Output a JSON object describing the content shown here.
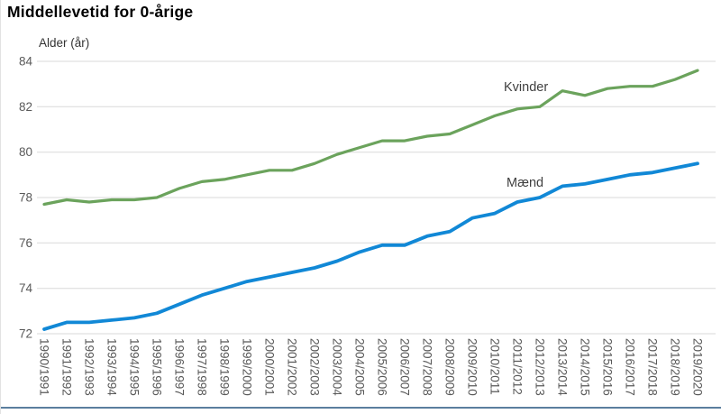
{
  "chart_data": {
    "type": "line",
    "title": "Middellevetid for 0-årige",
    "ylabel": "Alder (år)",
    "xlabel": "",
    "ylim": [
      72,
      84
    ],
    "y_ticks": [
      72,
      74,
      76,
      78,
      80,
      82,
      84
    ],
    "grid": "horizontal",
    "legend_position": "inline-labels",
    "categories": [
      "1990/1991",
      "1991/1992",
      "1992/1993",
      "1993/1994",
      "1994/1995",
      "1995/1996",
      "1996/1997",
      "1997/1998",
      "1998/1999",
      "1999/2000",
      "2000/2001",
      "2001/2002",
      "2002/2003",
      "2003/2004",
      "2004/2005",
      "2005/2006",
      "2006/2007",
      "2007/2008",
      "2008/2009",
      "2009/2010",
      "2010/2011",
      "2011/2012",
      "2012/2013",
      "2013/2014",
      "2014/2015",
      "2015/2016",
      "2016/2017",
      "2017/2018",
      "2018/2019",
      "2019/2020"
    ],
    "series": [
      {
        "name": "Kvinder",
        "color": "#6ba35c",
        "values": [
          77.7,
          77.9,
          77.8,
          77.9,
          77.9,
          78.0,
          78.4,
          78.7,
          78.8,
          79.0,
          79.2,
          79.2,
          79.5,
          79.9,
          80.2,
          80.5,
          80.5,
          80.7,
          80.8,
          81.2,
          81.6,
          81.9,
          82.0,
          82.7,
          82.5,
          82.8,
          82.9,
          82.9,
          83.2,
          83.6
        ]
      },
      {
        "name": "Mænd",
        "color": "#1188d6",
        "values": [
          72.2,
          72.5,
          72.5,
          72.6,
          72.7,
          72.9,
          73.3,
          73.7,
          74.0,
          74.3,
          74.5,
          74.7,
          74.9,
          75.2,
          75.6,
          75.9,
          75.9,
          76.3,
          76.5,
          77.1,
          77.3,
          77.8,
          78.0,
          78.5,
          78.6,
          78.8,
          79.0,
          79.1,
          79.3,
          79.5
        ]
      }
    ]
  },
  "colors": {
    "gridline": "#d9d9d9",
    "tick_label": "#595959",
    "series_label": "#404040",
    "title": "#000000",
    "bottom_border": "#5b7e9e",
    "background": "#ffffff"
  }
}
